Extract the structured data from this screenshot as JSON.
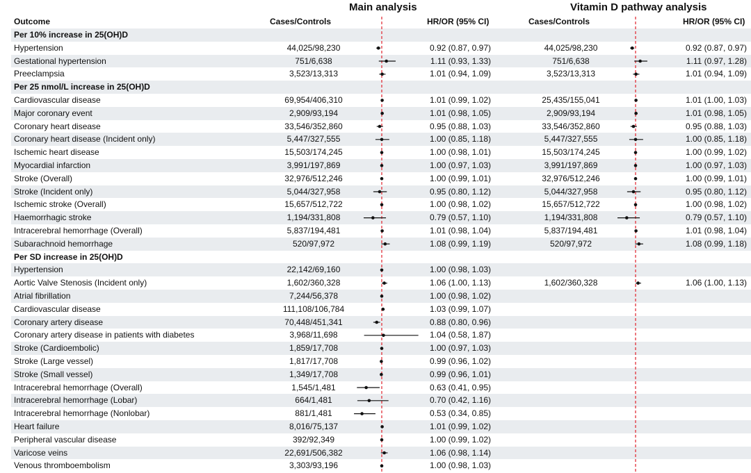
{
  "headers": {
    "main_title": "Main analysis",
    "vitd_title": "Vitamin D pathway analysis",
    "outcome": "Outcome",
    "cases_controls": "Cases/Controls",
    "hr_or": "HR/OR (95% CI)",
    "vitd_cases_controls": "Cases/Controls",
    "vitd_hr_or": "HR/OR (95% CI)"
  },
  "chart_data": {
    "type": "forest",
    "reference_line": 1.0,
    "panels": [
      "Main analysis",
      "Vitamin D pathway analysis"
    ],
    "rows": [
      {
        "kind": "section",
        "label": "Per 10% increase in 25(OH)D"
      },
      {
        "kind": "data",
        "label": "Hypertension",
        "main": {
          "cases": "44,025/98,230",
          "text": "0.92 (0.87, 0.97)",
          "est": 0.92,
          "lo": 0.87,
          "hi": 0.97
        },
        "vitd": {
          "cases": "44,025/98,230",
          "text": "0.92 (0.87, 0.97)",
          "est": 0.92,
          "lo": 0.87,
          "hi": 0.97
        }
      },
      {
        "kind": "data",
        "label": "Gestational hypertension",
        "main": {
          "cases": "751/6,638",
          "text": "1.11 (0.93, 1.33)",
          "est": 1.11,
          "lo": 0.93,
          "hi": 1.33
        },
        "vitd": {
          "cases": "751/6,638",
          "text": "1.11 (0.97, 1.28)",
          "est": 1.11,
          "lo": 0.97,
          "hi": 1.28
        }
      },
      {
        "kind": "data",
        "label": "Preeclampsia",
        "main": {
          "cases": "3,523/13,313",
          "text": "1.01 (0.94, 1.09)",
          "est": 1.01,
          "lo": 0.94,
          "hi": 1.09
        },
        "vitd": {
          "cases": "3,523/13,313",
          "text": "1.01 (0.94, 1.09)",
          "est": 1.01,
          "lo": 0.94,
          "hi": 1.09
        }
      },
      {
        "kind": "section",
        "label": "Per 25 nmol/L increase in 25(OH)D"
      },
      {
        "kind": "data",
        "label": "Cardiovascular disease",
        "main": {
          "cases": "69,954/406,310",
          "text": "1.01 (0.99, 1.02)",
          "est": 1.01,
          "lo": 0.99,
          "hi": 1.02
        },
        "vitd": {
          "cases": "25,435/155,041",
          "text": "1.01 (1.00, 1.03)",
          "est": 1.01,
          "lo": 1.0,
          "hi": 1.03
        }
      },
      {
        "kind": "data",
        "label": "Major coronary event",
        "main": {
          "cases": "2,909/93,194",
          "text": "1.01 (0.98, 1.05)",
          "est": 1.01,
          "lo": 0.98,
          "hi": 1.05
        },
        "vitd": {
          "cases": "2,909/93,194",
          "text": "1.01 (0.98, 1.05)",
          "est": 1.01,
          "lo": 0.98,
          "hi": 1.05
        }
      },
      {
        "kind": "data",
        "label": "Coronary heart disease",
        "main": {
          "cases": "33,546/352,860",
          "text": "0.95 (0.88, 1.03)",
          "est": 0.95,
          "lo": 0.88,
          "hi": 1.03
        },
        "vitd": {
          "cases": "33,546/352,860",
          "text": "0.95 (0.88, 1.03)",
          "est": 0.95,
          "lo": 0.88,
          "hi": 1.03
        }
      },
      {
        "kind": "data",
        "label": "Coronary heart disease (Incident only)",
        "main": {
          "cases": "5,447/327,555",
          "text": "1.00 (0.85, 1.18)",
          "est": 1.0,
          "lo": 0.85,
          "hi": 1.18
        },
        "vitd": {
          "cases": "5,447/327,555",
          "text": "1.00 (0.85, 1.18)",
          "est": 1.0,
          "lo": 0.85,
          "hi": 1.18
        }
      },
      {
        "kind": "data",
        "label": "Ischemic heart disease",
        "main": {
          "cases": "15,503/174,245",
          "text": "1.00 (0.98, 1.01)",
          "est": 1.0,
          "lo": 0.98,
          "hi": 1.01
        },
        "vitd": {
          "cases": "15,503/174,245",
          "text": "1.00 (0.99, 1.02)",
          "est": 1.0,
          "lo": 0.99,
          "hi": 1.02
        }
      },
      {
        "kind": "data",
        "label": "Myocardial infarction",
        "main": {
          "cases": "3,991/197,869",
          "text": "1.00 (0.97, 1.03)",
          "est": 1.0,
          "lo": 0.97,
          "hi": 1.03
        },
        "vitd": {
          "cases": "3,991/197,869",
          "text": "1.00 (0.97, 1.03)",
          "est": 1.0,
          "lo": 0.97,
          "hi": 1.03
        }
      },
      {
        "kind": "data",
        "label": "Stroke (Overall)",
        "main": {
          "cases": "32,976/512,246",
          "text": "1.00 (0.99, 1.01)",
          "est": 1.0,
          "lo": 0.99,
          "hi": 1.01
        },
        "vitd": {
          "cases": "32,976/512,246",
          "text": "1.00 (0.99, 1.01)",
          "est": 1.0,
          "lo": 0.99,
          "hi": 1.01
        }
      },
      {
        "kind": "data",
        "label": "Stroke (Incident only)",
        "main": {
          "cases": "5,044/327,958",
          "text": "0.95 (0.80, 1.12)",
          "est": 0.95,
          "lo": 0.8,
          "hi": 1.12
        },
        "vitd": {
          "cases": "5,044/327,958",
          "text": "0.95 (0.80, 1.12)",
          "est": 0.95,
          "lo": 0.8,
          "hi": 1.12
        }
      },
      {
        "kind": "data",
        "label": "Ischemic stroke (Overall)",
        "main": {
          "cases": "15,657/512,722",
          "text": "1.00 (0.98, 1.02)",
          "est": 1.0,
          "lo": 0.98,
          "hi": 1.02
        },
        "vitd": {
          "cases": "15,657/512,722",
          "text": "1.00 (0.98, 1.02)",
          "est": 1.0,
          "lo": 0.98,
          "hi": 1.02
        }
      },
      {
        "kind": "data",
        "label": "Haemorrhagic stroke",
        "main": {
          "cases": "1,194/331,808",
          "text": "0.79 (0.57, 1.10)",
          "est": 0.79,
          "lo": 0.57,
          "hi": 1.1
        },
        "vitd": {
          "cases": "1,194/331,808",
          "text": "0.79 (0.57, 1.10)",
          "est": 0.79,
          "lo": 0.57,
          "hi": 1.1
        }
      },
      {
        "kind": "data",
        "label": "Intracerebral hemorrhage (Overall)",
        "main": {
          "cases": "5,837/194,481",
          "text": "1.01 (0.98, 1.04)",
          "est": 1.01,
          "lo": 0.98,
          "hi": 1.04
        },
        "vitd": {
          "cases": "5,837/194,481",
          "text": "1.01 (0.98, 1.04)",
          "est": 1.01,
          "lo": 0.98,
          "hi": 1.04
        }
      },
      {
        "kind": "data",
        "label": "Subarachnoid hemorrhage",
        "main": {
          "cases": "520/97,972",
          "text": "1.08 (0.99, 1.19)",
          "est": 1.08,
          "lo": 0.99,
          "hi": 1.19
        },
        "vitd": {
          "cases": "520/97,972",
          "text": "1.08 (0.99, 1.18)",
          "est": 1.08,
          "lo": 0.99,
          "hi": 1.18
        }
      },
      {
        "kind": "section",
        "label": "Per SD increase in 25(OH)D"
      },
      {
        "kind": "data",
        "label": "Hypertension",
        "main": {
          "cases": "22,142/69,160",
          "text": "1.00 (0.98, 1.03)",
          "est": 1.0,
          "lo": 0.98,
          "hi": 1.03
        }
      },
      {
        "kind": "data",
        "label": "Aortic Valve Stenosis (Incident only)",
        "main": {
          "cases": "1,602/360,328",
          "text": "1.06 (1.00, 1.13)",
          "est": 1.06,
          "lo": 1.0,
          "hi": 1.13
        },
        "vitd": {
          "cases": "1,602/360,328",
          "text": "1.06 (1.00, 1.13)",
          "est": 1.06,
          "lo": 1.0,
          "hi": 1.13
        }
      },
      {
        "kind": "data",
        "label": "Atrial fibrillation",
        "main": {
          "cases": "7,244/56,378",
          "text": "1.00 (0.98, 1.02)",
          "est": 1.0,
          "lo": 0.98,
          "hi": 1.02
        }
      },
      {
        "kind": "data",
        "label": "Cardiovascular disease",
        "main": {
          "cases": "111,108/106,784",
          "text": "1.03 (0.99, 1.07)",
          "est": 1.03,
          "lo": 0.99,
          "hi": 1.07
        }
      },
      {
        "kind": "data",
        "label": "Coronary artery disease",
        "main": {
          "cases": "70,448/451,341",
          "text": "0.88 (0.80, 0.96)",
          "est": 0.88,
          "lo": 0.8,
          "hi": 0.96
        }
      },
      {
        "kind": "data",
        "label": "Coronary artery disease in patients with diabetes",
        "main": {
          "cases": "3,968/11,698",
          "text": "1.04 (0.58, 1.87)",
          "est": 1.04,
          "lo": 0.58,
          "hi": 1.87
        }
      },
      {
        "kind": "data",
        "label": "Stroke (Cardioembolic)",
        "main": {
          "cases": "1,859/17,708",
          "text": "1.00 (0.97, 1.03)",
          "est": 1.0,
          "lo": 0.97,
          "hi": 1.03
        }
      },
      {
        "kind": "data",
        "label": "Stroke (Large vessel)",
        "main": {
          "cases": "1,817/17,708",
          "text": "0.99 (0.96, 1.02)",
          "est": 0.99,
          "lo": 0.96,
          "hi": 1.02
        }
      },
      {
        "kind": "data",
        "label": "Stroke (Small vessel)",
        "main": {
          "cases": "1,349/17,708",
          "text": "0.99 (0.96, 1.01)",
          "est": 0.99,
          "lo": 0.96,
          "hi": 1.01
        }
      },
      {
        "kind": "data",
        "label": "Intracerebral hemorrhage (Overall)",
        "main": {
          "cases": "1,545/1,481",
          "text": "0.63 (0.41, 0.95)",
          "est": 0.63,
          "lo": 0.41,
          "hi": 0.95
        }
      },
      {
        "kind": "data",
        "label": "Intracerebral hemorrhage (Lobar)",
        "main": {
          "cases": "664/1,481",
          "text": "0.70 (0.42, 1.16)",
          "est": 0.7,
          "lo": 0.42,
          "hi": 1.16
        }
      },
      {
        "kind": "data",
        "label": "Intracerebral hemorrhage (Nonlobar)",
        "main": {
          "cases": "881/1,481",
          "text": "0.53 (0.34, 0.85)",
          "est": 0.53,
          "lo": 0.34,
          "hi": 0.85
        }
      },
      {
        "kind": "data",
        "label": "Heart failure",
        "main": {
          "cases": "8,016/75,137",
          "text": "1.01 (0.99, 1.02)",
          "est": 1.01,
          "lo": 0.99,
          "hi": 1.02
        }
      },
      {
        "kind": "data",
        "label": "Peripheral vascular disease",
        "main": {
          "cases": "392/92,349",
          "text": "1.00 (0.99, 1.02)",
          "est": 1.0,
          "lo": 0.99,
          "hi": 1.02
        }
      },
      {
        "kind": "data",
        "label": "Varicose veins",
        "main": {
          "cases": "22,691/506,382",
          "text": "1.06 (0.98, 1.14)",
          "est": 1.06,
          "lo": 0.98,
          "hi": 1.14
        }
      },
      {
        "kind": "data",
        "label": "Venous thromboembolism",
        "main": {
          "cases": "3,303/93,196",
          "text": "1.00 (0.98, 1.03)",
          "est": 1.0,
          "lo": 0.98,
          "hi": 1.03
        }
      }
    ]
  }
}
